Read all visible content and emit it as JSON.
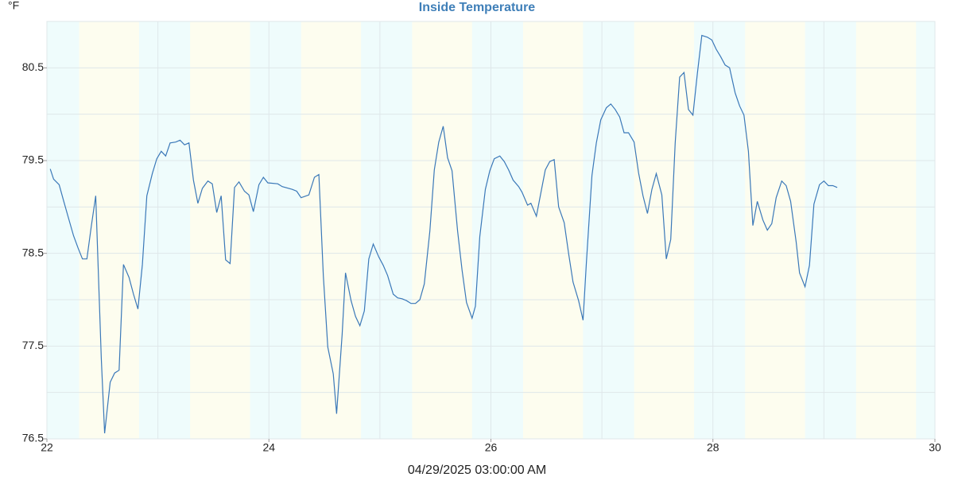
{
  "chart_data": {
    "type": "line",
    "title": "Inside Temperature",
    "y_unit": "°F",
    "x_label": "04/29/2025 03:00:00 AM",
    "color": "#3a78b8",
    "title_color": "#3f7fb8",
    "grid": true,
    "grid_color": "#dfe7ea",
    "day_color": "#fdfdef",
    "night_color": "#effcfc",
    "xlim": [
      22,
      30
    ],
    "xticks": [
      22,
      24,
      26,
      28,
      30
    ],
    "x_gridlines": [
      23,
      24,
      25,
      26,
      27,
      28,
      29
    ],
    "ylim": [
      76.5,
      81
    ],
    "yticks": [
      76.5,
      77.5,
      78.5,
      79.5,
      80.5
    ],
    "y_gridlines": [
      77,
      77.5,
      78,
      78.5,
      79,
      79.5,
      80,
      80.5,
      81
    ],
    "night_bands": [
      [
        22,
        22.29
      ],
      [
        22.83,
        23.29
      ],
      [
        23.83,
        24.29
      ],
      [
        24.83,
        25.29
      ],
      [
        25.83,
        26.29
      ],
      [
        26.83,
        27.29
      ],
      [
        27.83,
        28.29
      ],
      [
        28.83,
        29.29
      ],
      [
        29.83,
        30
      ]
    ],
    "x": [
      22.03,
      22.06,
      22.11,
      22.15,
      22.19,
      22.24,
      22.28,
      22.32,
      22.36,
      22.4,
      22.44,
      22.49,
      22.52,
      22.57,
      22.61,
      22.65,
      22.69,
      22.74,
      22.78,
      22.82,
      22.86,
      22.9,
      22.95,
      22.99,
      23.03,
      23.07,
      23.11,
      23.16,
      23.2,
      23.24,
      23.28,
      23.32,
      23.36,
      23.4,
      23.45,
      23.49,
      23.53,
      23.57,
      23.61,
      23.65,
      23.69,
      23.73,
      23.78,
      23.82,
      23.86,
      23.91,
      23.95,
      23.99,
      24.08,
      24.12,
      24.21,
      24.25,
      24.29,
      24.36,
      24.41,
      24.45,
      24.49,
      24.53,
      24.58,
      24.61,
      24.66,
      24.69,
      24.74,
      24.78,
      24.82,
      24.86,
      24.9,
      24.94,
      24.99,
      25.03,
      25.07,
      25.12,
      25.16,
      25.2,
      25.24,
      25.28,
      25.32,
      25.36,
      25.4,
      25.45,
      25.49,
      25.53,
      25.57,
      25.61,
      25.65,
      25.7,
      25.74,
      25.78,
      25.83,
      25.86,
      25.9,
      25.95,
      25.99,
      26.03,
      26.08,
      26.12,
      26.16,
      26.2,
      26.25,
      26.28,
      26.33,
      26.36,
      26.41,
      26.45,
      26.49,
      26.53,
      26.57,
      26.61,
      26.66,
      26.7,
      26.74,
      26.79,
      26.83,
      26.86,
      26.91,
      26.95,
      26.99,
      27.04,
      27.08,
      27.12,
      27.16,
      27.2,
      27.24,
      27.29,
      27.33,
      27.37,
      27.41,
      27.45,
      27.49,
      27.54,
      27.58,
      27.62,
      27.66,
      27.7,
      27.74,
      27.78,
      27.82,
      27.86,
      27.9,
      27.95,
      27.99,
      28.03,
      28.07,
      28.11,
      28.15,
      28.2,
      28.24,
      28.28,
      28.32,
      28.36,
      28.4,
      28.45,
      28.49,
      28.53,
      28.57,
      28.62,
      28.66,
      28.7,
      28.75,
      28.78,
      28.83,
      28.87,
      28.91,
      28.96,
      29.0,
      29.04,
      29.08,
      29.12
    ],
    "values": [
      79.41,
      79.3,
      79.24,
      79.07,
      78.9,
      78.69,
      78.56,
      78.44,
      78.44,
      78.79,
      79.12,
      77.37,
      76.56,
      77.11,
      77.21,
      77.24,
      78.38,
      78.24,
      78.06,
      77.9,
      78.38,
      79.12,
      79.36,
      79.52,
      79.6,
      79.55,
      79.69,
      79.7,
      79.72,
      79.67,
      79.69,
      79.29,
      79.04,
      79.2,
      79.28,
      79.25,
      78.94,
      79.12,
      78.43,
      78.39,
      79.21,
      79.27,
      79.17,
      79.13,
      78.95,
      79.24,
      79.32,
      79.26,
      79.25,
      79.22,
      79.19,
      79.17,
      79.1,
      79.13,
      79.32,
      79.35,
      78.26,
      77.49,
      77.2,
      76.77,
      77.63,
      78.29,
      77.99,
      77.82,
      77.72,
      77.88,
      78.44,
      78.6,
      78.46,
      78.37,
      78.26,
      78.06,
      78.02,
      78.01,
      77.99,
      77.96,
      77.96,
      78.0,
      78.17,
      78.74,
      79.4,
      79.7,
      79.87,
      79.53,
      79.39,
      78.74,
      78.32,
      77.97,
      77.8,
      77.93,
      78.68,
      79.19,
      79.39,
      79.52,
      79.55,
      79.49,
      79.4,
      79.29,
      79.22,
      79.16,
      79.02,
      79.04,
      78.9,
      79.15,
      79.4,
      79.49,
      79.51,
      79.0,
      78.83,
      78.5,
      78.19,
      77.99,
      77.78,
      78.4,
      79.34,
      79.69,
      79.94,
      80.07,
      80.11,
      80.05,
      79.97,
      79.8,
      79.8,
      79.7,
      79.37,
      79.12,
      78.93,
      79.19,
      79.36,
      79.13,
      78.44,
      78.65,
      79.69,
      80.4,
      80.45,
      80.05,
      79.99,
      80.44,
      80.85,
      80.83,
      80.8,
      80.7,
      80.62,
      80.53,
      80.5,
      80.23,
      80.09,
      79.99,
      79.6,
      78.8,
      79.06,
      78.86,
      78.75,
      78.82,
      79.1,
      79.28,
      79.23,
      79.06,
      78.62,
      78.29,
      78.14,
      78.37,
      79.03,
      79.24,
      79.28,
      79.23,
      79.23,
      79.21
    ]
  }
}
